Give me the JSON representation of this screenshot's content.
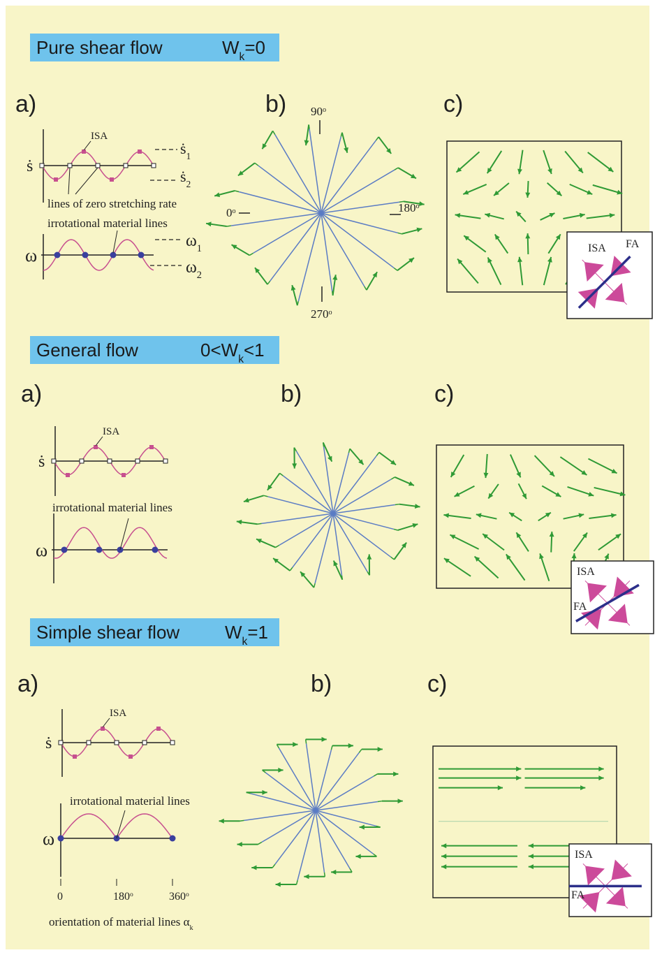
{
  "sections": [
    {
      "title": "Pure shear flow",
      "wk": {
        "symbol": "W",
        "subscript": "k",
        "relation": "=0"
      },
      "a": {
        "label": "a)",
        "isa": "ISA",
        "s_symbol": "ṡ",
        "s1": {
          "symbol": "ṡ",
          "subscript": "1"
        },
        "s2": {
          "symbol": "ṡ",
          "subscript": "2"
        },
        "zero_lines": "lines of zero stretching rate",
        "irrotational": "irrotational material lines",
        "omega": "ω",
        "omega1": {
          "symbol": "ω",
          "subscript": "1"
        },
        "omega2": {
          "symbol": "ω",
          "subscript": "2"
        }
      },
      "b": {
        "label": "b)",
        "angles": [
          {
            "value": "90",
            "sup": "o"
          },
          {
            "value": "0",
            "sup": "o"
          },
          {
            "value": "180",
            "sup": "o"
          },
          {
            "value": "270",
            "sup": "o"
          }
        ]
      },
      "c": {
        "label": "c)",
        "isa": "ISA",
        "fa": "FA"
      }
    },
    {
      "title": "General flow",
      "wk": {
        "symbol": "0<W",
        "subscript": "k",
        "relation": "<1"
      },
      "a": {
        "label": "a)",
        "isa": "ISA",
        "s_symbol": "ṡ",
        "irrotational": "irrotational material lines",
        "omega": "ω"
      },
      "b": {
        "label": "b)"
      },
      "c": {
        "label": "c)",
        "isa": "ISA",
        "fa": "FA"
      }
    },
    {
      "title": "Simple shear flow",
      "wk": {
        "symbol": "W",
        "subscript": "k",
        "relation": "=1"
      },
      "a": {
        "label": "a)",
        "isa": "ISA",
        "s_symbol": "ṡ",
        "irrotational": "irrotational material lines",
        "omega": "ω",
        "ticks": [
          {
            "value": "0",
            "sup": ""
          },
          {
            "value": "180",
            "sup": "o"
          },
          {
            "value": "360",
            "sup": "o"
          }
        ],
        "x_label": {
          "text": "orientation of material lines α",
          "subscript": "k"
        }
      },
      "b": {
        "label": "b)"
      },
      "c": {
        "label": "c)",
        "isa": "ISA",
        "fa": "FA"
      }
    }
  ]
}
